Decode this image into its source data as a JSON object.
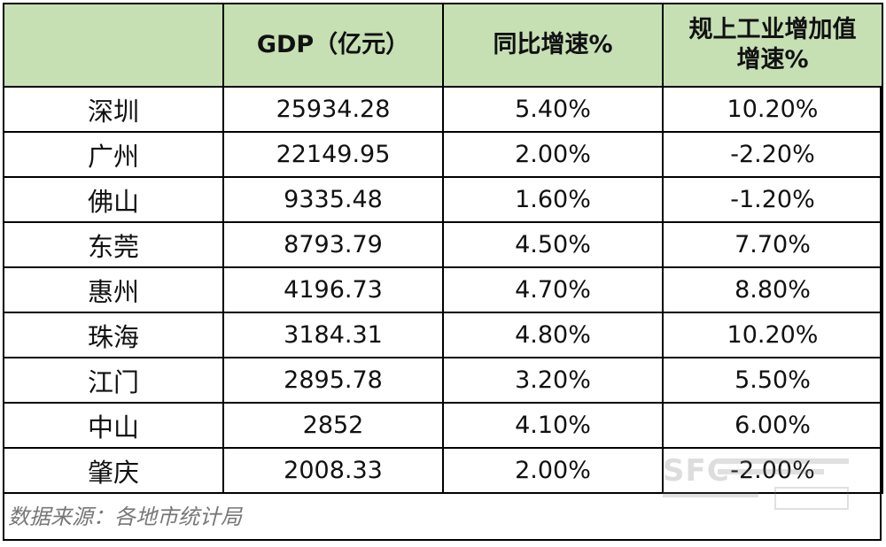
{
  "table": {
    "headers": [
      "",
      "GDP（亿元）",
      "同比增速%",
      "规上工业增加值增速%"
    ],
    "rows": [
      [
        "深圳",
        "25934.28",
        "5.40%",
        "10.20%"
      ],
      [
        "广州",
        "22149.95",
        "2.00%",
        "-2.20%"
      ],
      [
        "佛山",
        "9335.48",
        "1.60%",
        "-1.20%"
      ],
      [
        "东莞",
        "8793.79",
        "4.50%",
        "7.70%"
      ],
      [
        "惠州",
        "4196.73",
        "4.70%",
        "8.80%"
      ],
      [
        "珠海",
        "3184.31",
        "4.80%",
        "10.20%"
      ],
      [
        "江门",
        "2895.78",
        "3.20%",
        "5.50%"
      ],
      [
        "中山",
        "2852",
        "4.10%",
        "6.00%"
      ],
      [
        "肇庆",
        "2008.33",
        "2.00%",
        "-2.00%"
      ]
    ]
  },
  "footer": {
    "source": "数据来源：各地市统计局"
  },
  "watermark": {
    "logo_text": "SFC"
  }
}
